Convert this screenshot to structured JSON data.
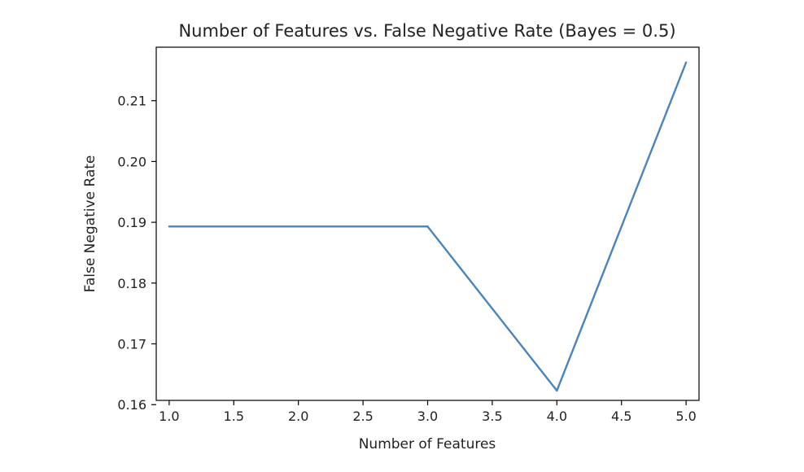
{
  "chart_data": {
    "type": "line",
    "title": "Number of Features vs. False Negative Rate (Bayes = 0.5)",
    "xlabel": "Number of Features",
    "ylabel": "False Negative Rate",
    "xlim": [
      0.9,
      5.1
    ],
    "ylim": [
      0.1607,
      0.2188
    ],
    "xticks": [
      1.0,
      1.5,
      2.0,
      2.5,
      3.0,
      3.5,
      4.0,
      4.5,
      5.0
    ],
    "xtick_labels": [
      "1.0",
      "1.5",
      "2.0",
      "2.5",
      "3.0",
      "3.5",
      "4.0",
      "4.5",
      "5.0"
    ],
    "yticks": [
      0.16,
      0.17,
      0.18,
      0.19,
      0.2,
      0.21
    ],
    "ytick_labels": [
      "0.16",
      "0.17",
      "0.18",
      "0.19",
      "0.20",
      "0.21"
    ],
    "grid": false,
    "series": [
      {
        "color": "#4a84bd",
        "x": [
          1,
          2,
          3,
          4,
          5
        ],
        "y": [
          0.1893,
          0.1893,
          0.1893,
          0.1623,
          0.2163
        ]
      }
    ]
  }
}
